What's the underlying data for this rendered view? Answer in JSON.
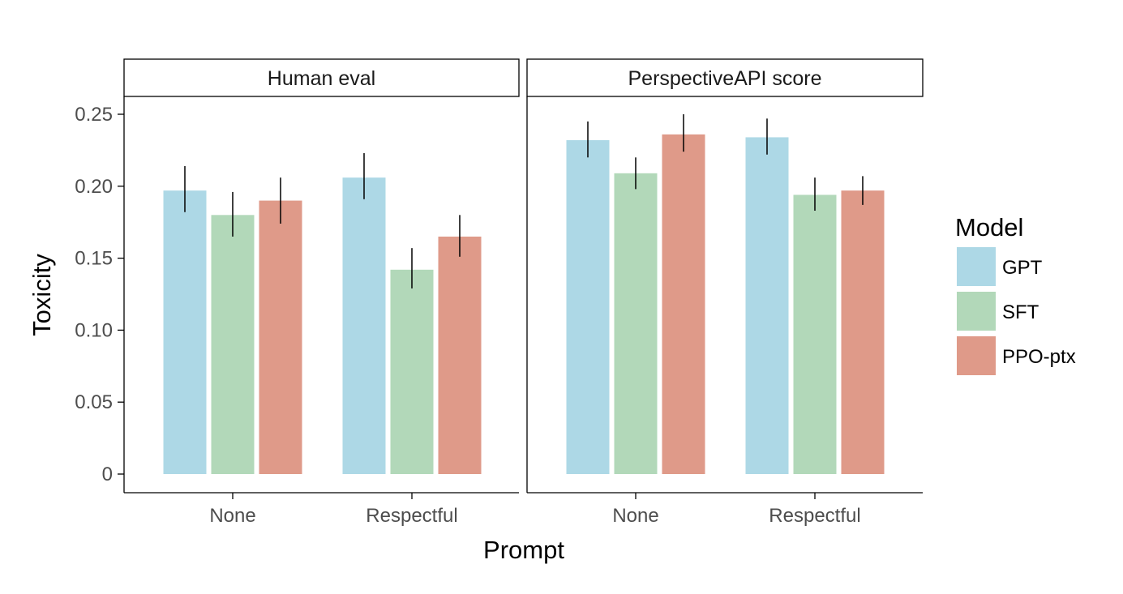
{
  "chart_data": {
    "type": "bar",
    "ylabel": "Toxicity",
    "xlabel": "Prompt",
    "ylim": [
      0,
      0.265
    ],
    "y_ticks": [
      0,
      0.05,
      0.1,
      0.15,
      0.2,
      0.25
    ],
    "y_tick_labels": [
      "0",
      "0.05",
      "0.10",
      "0.15",
      "0.20",
      "0.25"
    ],
    "categories": [
      "None",
      "Respectful"
    ],
    "legend": {
      "title": "Model",
      "placement": "right",
      "entries": [
        {
          "name": "GPT",
          "color": "#add8e6"
        },
        {
          "name": "SFT",
          "color": "#b2d8b9"
        },
        {
          "name": "PPO-ptx",
          "color": "#df9a89"
        }
      ]
    },
    "panels": [
      {
        "title": "Human eval",
        "series": [
          {
            "name": "GPT",
            "values": [
              0.197,
              0.206
            ],
            "error_low": [
              0.182,
              0.191
            ],
            "error_high": [
              0.214,
              0.223
            ]
          },
          {
            "name": "SFT",
            "values": [
              0.18,
              0.142
            ],
            "error_low": [
              0.165,
              0.129
            ],
            "error_high": [
              0.196,
              0.157
            ]
          },
          {
            "name": "PPO-ptx",
            "values": [
              0.19,
              0.165
            ],
            "error_low": [
              0.174,
              0.151
            ],
            "error_high": [
              0.206,
              0.18
            ]
          }
        ]
      },
      {
        "title": "PerspectiveAPI score",
        "series": [
          {
            "name": "GPT",
            "values": [
              0.232,
              0.234
            ],
            "error_low": [
              0.22,
              0.222
            ],
            "error_high": [
              0.245,
              0.247
            ]
          },
          {
            "name": "SFT",
            "values": [
              0.209,
              0.194
            ],
            "error_low": [
              0.198,
              0.183
            ],
            "error_high": [
              0.22,
              0.206
            ]
          },
          {
            "name": "PPO-ptx",
            "values": [
              0.236,
              0.197
            ],
            "error_low": [
              0.224,
              0.187
            ],
            "error_high": [
              0.25,
              0.207
            ]
          }
        ]
      }
    ]
  }
}
